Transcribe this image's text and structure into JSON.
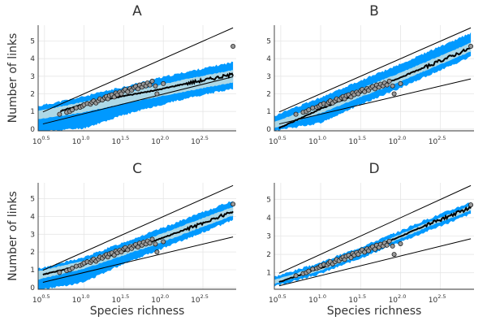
{
  "colors": {
    "outer_band": "#0099ff",
    "inner_band": "#add8e6",
    "points_fill": "#999999",
    "points_stroke": "#222222",
    "lines": "#000000",
    "grid": "#e6e6e6"
  },
  "chart_data": [
    {
      "type": "scatter",
      "title": "A",
      "xlabel": "",
      "ylabel": "Number of links",
      "x_scale": "log10",
      "x_tick_labels": [
        "10^0.5",
        "10^1.0",
        "10^1.5",
        "10^2.0",
        "10^2.5"
      ],
      "xlim": [
        0.42,
        2.92
      ],
      "ylim": [
        -0.1,
        5.9
      ],
      "y_tick_labels": [
        "0",
        "1",
        "2",
        "3",
        "4",
        "5"
      ],
      "grid": true,
      "reference_lines": [
        {
          "name": "upper",
          "x": [
            0.48,
            2.88
          ],
          "y": [
            0.97,
            5.75
          ]
        },
        {
          "name": "lower",
          "x": [
            0.48,
            2.88
          ],
          "y": [
            0.29,
            2.97
          ]
        }
      ],
      "median_line": {
        "x": [
          0.7,
          1.0,
          1.5,
          1.9,
          2.3,
          2.88
        ],
        "y": [
          1.02,
          1.42,
          1.88,
          2.2,
          2.6,
          3.1
        ]
      },
      "outer_band": {
        "x": [
          0.42,
          1.0,
          1.5,
          1.9,
          2.3,
          2.88
        ],
        "lower": [
          -0.15,
          0.05,
          0.8,
          1.3,
          1.75,
          2.3
        ],
        "upper": [
          1.3,
          1.85,
          2.4,
          2.85,
          3.25,
          3.8
        ]
      },
      "inner_band": {
        "x": [
          0.42,
          1.0,
          1.5,
          1.9,
          2.3,
          2.88
        ],
        "lower": [
          0.55,
          0.95,
          1.45,
          1.8,
          2.15,
          2.65
        ],
        "upper": [
          1.02,
          1.55,
          2.05,
          2.45,
          2.85,
          3.35
        ]
      },
      "points": [
        [
          0.69,
          0.84
        ],
        [
          0.78,
          0.95
        ],
        [
          0.82,
          1.0
        ],
        [
          0.85,
          1.09
        ],
        [
          0.9,
          1.2
        ],
        [
          0.95,
          1.24
        ],
        [
          0.98,
          1.3
        ],
        [
          1.0,
          1.38
        ],
        [
          1.04,
          1.45
        ],
        [
          1.08,
          1.41
        ],
        [
          1.1,
          1.52
        ],
        [
          1.12,
          1.6
        ],
        [
          1.15,
          1.48
        ],
        [
          1.18,
          1.6
        ],
        [
          1.2,
          1.72
        ],
        [
          1.23,
          1.65
        ],
        [
          1.26,
          1.78
        ],
        [
          1.28,
          1.85
        ],
        [
          1.3,
          1.72
        ],
        [
          1.32,
          1.9
        ],
        [
          1.35,
          1.95
        ],
        [
          1.38,
          1.82
        ],
        [
          1.4,
          2.05
        ],
        [
          1.42,
          1.95
        ],
        [
          1.45,
          2.1
        ],
        [
          1.47,
          2.0
        ],
        [
          1.5,
          2.18
        ],
        [
          1.52,
          2.25
        ],
        [
          1.55,
          2.12
        ],
        [
          1.58,
          2.3
        ],
        [
          1.6,
          2.2
        ],
        [
          1.63,
          2.35
        ],
        [
          1.65,
          2.42
        ],
        [
          1.68,
          2.28
        ],
        [
          1.7,
          2.5
        ],
        [
          1.73,
          2.38
        ],
        [
          1.75,
          2.55
        ],
        [
          1.78,
          2.45
        ],
        [
          1.8,
          2.62
        ],
        [
          1.83,
          2.5
        ],
        [
          1.86,
          2.72
        ],
        [
          1.9,
          2.45
        ],
        [
          1.92,
          2.0
        ],
        [
          2.0,
          2.58
        ],
        [
          2.88,
          4.7
        ]
      ]
    },
    {
      "type": "scatter",
      "title": "B",
      "xlabel": "",
      "ylabel": "",
      "x_scale": "log10",
      "x_tick_labels": [
        "10^0.5",
        "10^1.0",
        "10^1.5",
        "10^2.0",
        "10^2.5"
      ],
      "xlim": [
        0.42,
        2.92
      ],
      "ylim": [
        -0.1,
        5.9
      ],
      "y_tick_labels": [
        "0",
        "1",
        "2",
        "3",
        "4",
        "5"
      ],
      "grid": true,
      "reference_lines": [
        {
          "name": "upper",
          "x": [
            0.48,
            2.88
          ],
          "y": [
            0.97,
            5.75
          ]
        },
        {
          "name": "lower",
          "x": [
            0.48,
            2.88
          ],
          "y": [
            0.29,
            2.85
          ]
        }
      ],
      "median_line": {
        "x": [
          0.48,
          1.0,
          1.5,
          1.9,
          2.3,
          2.88
        ],
        "y": [
          0.05,
          1.15,
          2.05,
          2.75,
          3.5,
          4.6
        ]
      },
      "outer_band": {
        "x": [
          0.42,
          1.0,
          1.5,
          1.9,
          2.3,
          2.88
        ],
        "lower": [
          -0.1,
          0.35,
          1.4,
          2.15,
          2.95,
          4.1
        ],
        "upper": [
          0.75,
          1.8,
          2.75,
          3.5,
          4.3,
          5.45
        ]
      },
      "inner_band": {
        "x": [
          0.42,
          1.0,
          1.5,
          1.9,
          2.3,
          2.88
        ],
        "lower": [
          0.05,
          0.9,
          1.82,
          2.52,
          3.3,
          4.4
        ],
        "upper": [
          0.4,
          1.4,
          2.3,
          3.02,
          3.78,
          4.9
        ]
      },
      "points": [
        [
          0.69,
          0.84
        ],
        [
          0.78,
          0.95
        ],
        [
          0.82,
          1.0
        ],
        [
          0.85,
          1.09
        ],
        [
          0.9,
          1.2
        ],
        [
          0.95,
          1.24
        ],
        [
          0.98,
          1.3
        ],
        [
          1.0,
          1.38
        ],
        [
          1.04,
          1.45
        ],
        [
          1.08,
          1.41
        ],
        [
          1.1,
          1.52
        ],
        [
          1.12,
          1.6
        ],
        [
          1.15,
          1.48
        ],
        [
          1.18,
          1.6
        ],
        [
          1.2,
          1.72
        ],
        [
          1.23,
          1.65
        ],
        [
          1.26,
          1.78
        ],
        [
          1.28,
          1.85
        ],
        [
          1.3,
          1.72
        ],
        [
          1.32,
          1.9
        ],
        [
          1.35,
          1.95
        ],
        [
          1.38,
          1.82
        ],
        [
          1.4,
          2.05
        ],
        [
          1.42,
          1.95
        ],
        [
          1.45,
          2.1
        ],
        [
          1.47,
          2.0
        ],
        [
          1.5,
          2.18
        ],
        [
          1.52,
          2.25
        ],
        [
          1.55,
          2.12
        ],
        [
          1.58,
          2.3
        ],
        [
          1.6,
          2.2
        ],
        [
          1.63,
          2.35
        ],
        [
          1.65,
          2.42
        ],
        [
          1.68,
          2.28
        ],
        [
          1.7,
          2.5
        ],
        [
          1.73,
          2.38
        ],
        [
          1.75,
          2.55
        ],
        [
          1.78,
          2.45
        ],
        [
          1.8,
          2.62
        ],
        [
          1.83,
          2.5
        ],
        [
          1.86,
          2.72
        ],
        [
          1.9,
          2.45
        ],
        [
          1.92,
          2.0
        ],
        [
          2.0,
          2.58
        ],
        [
          2.88,
          4.7
        ]
      ]
    },
    {
      "type": "scatter",
      "title": "C",
      "xlabel": "Species richness",
      "ylabel": "Number of links",
      "x_scale": "log10",
      "x_tick_labels": [
        "10^0.5",
        "10^1.0",
        "10^1.5",
        "10^2.0",
        "10^2.5"
      ],
      "xlim": [
        0.42,
        2.92
      ],
      "ylim": [
        -0.1,
        5.9
      ],
      "y_tick_labels": [
        "0",
        "1",
        "2",
        "3",
        "4",
        "5"
      ],
      "grid": true,
      "reference_lines": [
        {
          "name": "upper",
          "x": [
            0.48,
            2.88
          ],
          "y": [
            0.97,
            5.75
          ]
        },
        {
          "name": "lower",
          "x": [
            0.48,
            2.88
          ],
          "y": [
            0.29,
            2.85
          ]
        }
      ],
      "median_line": {
        "x": [
          0.48,
          1.0,
          1.5,
          1.9,
          2.3,
          2.88
        ],
        "y": [
          0.72,
          1.3,
          2.05,
          2.65,
          3.3,
          4.28
        ]
      },
      "outer_band": {
        "x": [
          0.42,
          1.0,
          1.5,
          1.9,
          2.3,
          2.88
        ],
        "lower": [
          -0.15,
          0.3,
          1.35,
          2.05,
          2.75,
          3.8
        ],
        "upper": [
          1.05,
          1.7,
          2.55,
          3.2,
          3.9,
          4.9
        ]
      },
      "inner_band": {
        "x": [
          0.42,
          1.0,
          1.5,
          1.9,
          2.3,
          2.88
        ],
        "lower": [
          0.45,
          1.05,
          1.82,
          2.42,
          3.08,
          4.05
        ],
        "upper": [
          0.92,
          1.5,
          2.3,
          2.9,
          3.58,
          4.55
        ]
      },
      "points": [
        [
          0.69,
          0.84
        ],
        [
          0.78,
          0.95
        ],
        [
          0.82,
          1.0
        ],
        [
          0.85,
          1.09
        ],
        [
          0.9,
          1.2
        ],
        [
          0.95,
          1.24
        ],
        [
          0.98,
          1.3
        ],
        [
          1.0,
          1.38
        ],
        [
          1.04,
          1.45
        ],
        [
          1.08,
          1.41
        ],
        [
          1.1,
          1.52
        ],
        [
          1.12,
          1.6
        ],
        [
          1.15,
          1.48
        ],
        [
          1.18,
          1.6
        ],
        [
          1.2,
          1.72
        ],
        [
          1.23,
          1.65
        ],
        [
          1.26,
          1.78
        ],
        [
          1.28,
          1.85
        ],
        [
          1.3,
          1.72
        ],
        [
          1.32,
          1.9
        ],
        [
          1.35,
          1.95
        ],
        [
          1.38,
          1.82
        ],
        [
          1.4,
          2.05
        ],
        [
          1.42,
          1.95
        ],
        [
          1.45,
          2.1
        ],
        [
          1.47,
          2.0
        ],
        [
          1.5,
          2.18
        ],
        [
          1.52,
          2.25
        ],
        [
          1.55,
          2.12
        ],
        [
          1.58,
          2.3
        ],
        [
          1.6,
          2.2
        ],
        [
          1.63,
          2.35
        ],
        [
          1.65,
          2.42
        ],
        [
          1.68,
          2.28
        ],
        [
          1.7,
          2.5
        ],
        [
          1.73,
          2.38
        ],
        [
          1.75,
          2.55
        ],
        [
          1.78,
          2.45
        ],
        [
          1.8,
          2.62
        ],
        [
          1.83,
          2.5
        ],
        [
          1.86,
          2.72
        ],
        [
          1.9,
          2.45
        ],
        [
          1.92,
          2.0
        ],
        [
          2.0,
          2.58
        ],
        [
          2.88,
          4.7
        ]
      ]
    },
    {
      "type": "scatter",
      "title": "D",
      "xlabel": "Species richness",
      "ylabel": "",
      "x_scale": "log10",
      "x_tick_labels": [
        "10^0.5",
        "10^1.0",
        "10^1.5",
        "10^2.0",
        "10^2.5"
      ],
      "xlim": [
        0.42,
        2.92
      ],
      "ylim": [
        0.1,
        5.9
      ],
      "y_tick_labels": [
        "1",
        "2",
        "3",
        "4",
        "5"
      ],
      "grid": true,
      "reference_lines": [
        {
          "name": "upper",
          "x": [
            0.48,
            2.88
          ],
          "y": [
            0.97,
            5.75
          ]
        },
        {
          "name": "lower",
          "x": [
            0.48,
            2.88
          ],
          "y": [
            0.29,
            2.85
          ]
        }
      ],
      "median_line": {
        "x": [
          0.48,
          1.0,
          1.5,
          1.9,
          2.3,
          2.88
        ],
        "y": [
          0.5,
          1.25,
          2.1,
          2.8,
          3.55,
          4.55
        ]
      },
      "outer_band": {
        "x": [
          0.42,
          1.0,
          1.5,
          1.9,
          2.3,
          2.88
        ],
        "lower": [
          0.25,
          0.95,
          1.8,
          2.5,
          3.2,
          4.2
        ],
        "upper": [
          0.78,
          1.55,
          2.4,
          3.1,
          3.85,
          4.85
        ]
      },
      "inner_band": {
        "x": [
          0.42,
          1.0,
          1.5,
          1.9,
          2.3,
          2.88
        ],
        "lower": [
          0.4,
          1.12,
          1.98,
          2.68,
          3.42,
          4.4
        ],
        "upper": [
          0.62,
          1.38,
          2.22,
          2.92,
          3.66,
          4.65
        ]
      },
      "points": [
        [
          0.69,
          0.84
        ],
        [
          0.78,
          0.95
        ],
        [
          0.82,
          1.0
        ],
        [
          0.85,
          1.09
        ],
        [
          0.9,
          1.2
        ],
        [
          0.95,
          1.24
        ],
        [
          0.98,
          1.3
        ],
        [
          1.0,
          1.38
        ],
        [
          1.04,
          1.45
        ],
        [
          1.08,
          1.41
        ],
        [
          1.1,
          1.52
        ],
        [
          1.12,
          1.6
        ],
        [
          1.15,
          1.48
        ],
        [
          1.18,
          1.6
        ],
        [
          1.2,
          1.72
        ],
        [
          1.23,
          1.65
        ],
        [
          1.26,
          1.78
        ],
        [
          1.28,
          1.85
        ],
        [
          1.3,
          1.72
        ],
        [
          1.32,
          1.9
        ],
        [
          1.35,
          1.95
        ],
        [
          1.38,
          1.82
        ],
        [
          1.4,
          2.05
        ],
        [
          1.42,
          1.95
        ],
        [
          1.45,
          2.1
        ],
        [
          1.47,
          2.0
        ],
        [
          1.5,
          2.18
        ],
        [
          1.52,
          2.25
        ],
        [
          1.55,
          2.12
        ],
        [
          1.58,
          2.3
        ],
        [
          1.6,
          2.2
        ],
        [
          1.63,
          2.35
        ],
        [
          1.65,
          2.42
        ],
        [
          1.68,
          2.28
        ],
        [
          1.7,
          2.5
        ],
        [
          1.73,
          2.38
        ],
        [
          1.75,
          2.55
        ],
        [
          1.78,
          2.45
        ],
        [
          1.8,
          2.62
        ],
        [
          1.83,
          2.5
        ],
        [
          1.86,
          2.72
        ],
        [
          1.9,
          2.45
        ],
        [
          1.92,
          2.0
        ],
        [
          2.0,
          2.58
        ],
        [
          2.88,
          4.7
        ]
      ]
    }
  ]
}
